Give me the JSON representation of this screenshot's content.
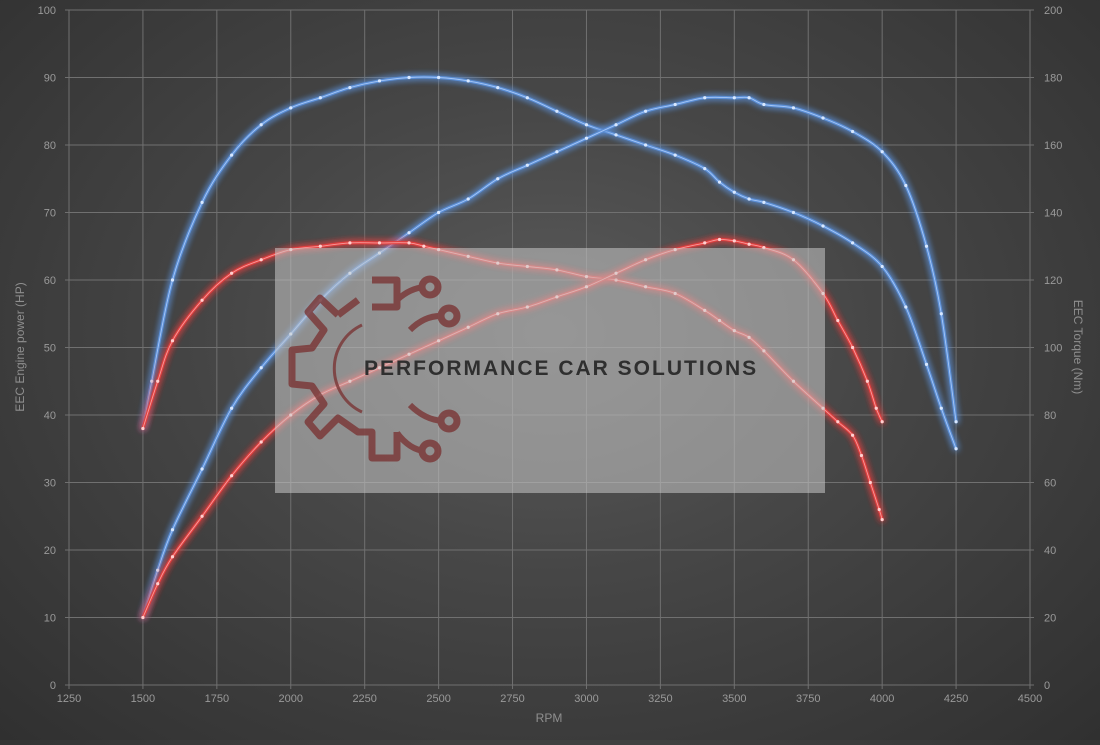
{
  "chart_data": {
    "type": "line",
    "title": "",
    "xlabel": "RPM",
    "ylabel": "EEC Engine power (HP)",
    "y2label": "EEC Torque (Nm)",
    "xlim": [
      1250,
      4500
    ],
    "ylim": [
      0,
      100
    ],
    "y2lim": [
      0,
      200
    ],
    "x_ticks": [
      1250,
      1500,
      1750,
      2000,
      2250,
      2500,
      2750,
      3000,
      3250,
      3500,
      3750,
      4000,
      4250,
      4500
    ],
    "y_ticks": [
      0,
      10,
      20,
      30,
      40,
      50,
      60,
      70,
      80,
      90,
      100
    ],
    "y2_ticks": [
      0,
      20,
      40,
      60,
      80,
      100,
      120,
      140,
      160,
      180,
      200
    ],
    "grid": true,
    "legend": "none",
    "series": [
      {
        "color": "#5b8fd6",
        "axis": "right",
        "x": [
          1500,
          1530,
          1600,
          1700,
          1800,
          1900,
          2000,
          2100,
          2200,
          2300,
          2400,
          2500,
          2600,
          2700,
          2800,
          2900,
          3000,
          3100,
          3200,
          3300,
          3400,
          3450,
          3500,
          3550,
          3600,
          3700,
          3800,
          3900,
          4000,
          4080,
          4150,
          4200,
          4250
        ],
        "values": [
          76,
          90,
          120,
          143,
          157,
          166,
          171,
          174,
          177,
          179,
          180,
          180,
          179,
          177,
          174,
          170,
          166,
          163,
          160,
          157,
          153,
          149,
          146,
          144,
          143,
          140,
          136,
          131,
          124,
          112,
          95,
          82,
          70
        ]
      },
      {
        "color": "#5b8fd6",
        "axis": "left",
        "x": [
          1500,
          1550,
          1600,
          1700,
          1800,
          1900,
          2000,
          2100,
          2200,
          2300,
          2400,
          2500,
          2600,
          2700,
          2800,
          2900,
          3000,
          3100,
          3200,
          3300,
          3400,
          3500,
          3550,
          3600,
          3700,
          3800,
          3900,
          4000,
          4080,
          4150,
          4200,
          4250
        ],
        "values": [
          10,
          17,
          23,
          32,
          41,
          47,
          52,
          57,
          61,
          64,
          67,
          70,
          72,
          75,
          77,
          79,
          81,
          83,
          85,
          86,
          87,
          87,
          87,
          86,
          85.5,
          84,
          82,
          79,
          74,
          65,
          55,
          39
        ]
      },
      {
        "color": "#e04040",
        "axis": "right",
        "x": [
          1500,
          1550,
          1600,
          1700,
          1800,
          1900,
          2000,
          2100,
          2200,
          2300,
          2400,
          2450,
          2500,
          2600,
          2700,
          2800,
          2900,
          3000,
          3100,
          3200,
          3300,
          3400,
          3450,
          3500,
          3550,
          3600,
          3700,
          3800,
          3850,
          3900,
          3930,
          3960,
          3990,
          4000
        ],
        "values": [
          76,
          90,
          102,
          114,
          122,
          126,
          129,
          130,
          131,
          131,
          131,
          130,
          129,
          127,
          125,
          124,
          123,
          121,
          120,
          118,
          116,
          111,
          108,
          105,
          103,
          99,
          90,
          82,
          78,
          74,
          68,
          60,
          52,
          49
        ]
      },
      {
        "color": "#e04040",
        "axis": "left",
        "x": [
          1500,
          1550,
          1600,
          1700,
          1800,
          1900,
          2000,
          2100,
          2200,
          2300,
          2400,
          2500,
          2600,
          2700,
          2800,
          2900,
          3000,
          3100,
          3200,
          3300,
          3400,
          3450,
          3500,
          3550,
          3600,
          3700,
          3800,
          3850,
          3900,
          3950,
          3980,
          4000
        ],
        "values": [
          10,
          15,
          19,
          25,
          31,
          36,
          40,
          43,
          45,
          47,
          49,
          51,
          53,
          55,
          56,
          57.5,
          59,
          61,
          63,
          64.5,
          65.5,
          66,
          65.8,
          65.3,
          64.8,
          63,
          58,
          54,
          50,
          45,
          41,
          39
        ]
      }
    ]
  },
  "watermark": {
    "text": "PERFORMANCE CAR SOLUTIONS",
    "icon": "gear-circuit-logo-icon"
  }
}
